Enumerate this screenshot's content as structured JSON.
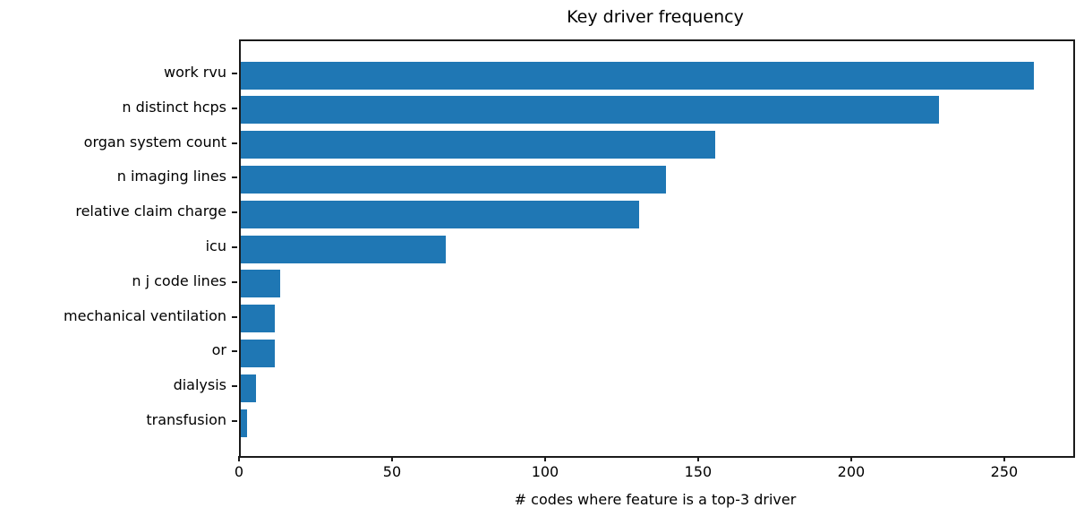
{
  "chart_data": {
    "type": "bar",
    "orientation": "horizontal",
    "title": "Key driver frequency",
    "xlabel": "# codes where feature is a top-3 driver",
    "ylabel": "",
    "categories": [
      "work rvu",
      "n distinct hcps",
      "organ system count",
      "n imaging lines",
      "relative claim charge",
      "icu",
      "n j code lines",
      "mechanical ventilation",
      "or",
      "dialysis",
      "transfusion"
    ],
    "values": [
      259,
      228,
      155,
      139,
      130,
      67,
      13,
      11,
      11,
      5,
      2
    ],
    "xticks": [
      0,
      50,
      100,
      150,
      200,
      250
    ],
    "xlim": [
      0,
      271.95
    ],
    "bar_color": "#1f77b4",
    "background_color": "#ffffff",
    "grid": false,
    "legend_position": "none"
  }
}
